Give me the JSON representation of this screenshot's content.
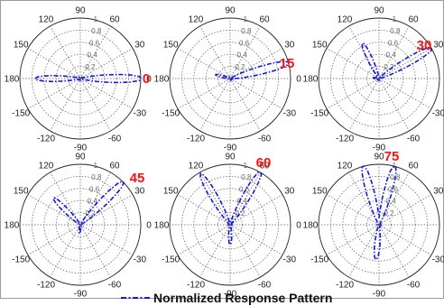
{
  "chart_data": {
    "type": "polar",
    "grid": true,
    "theta_ticks": [
      "0",
      "30",
      "60",
      "90",
      "120",
      "150",
      "180",
      "-150",
      "-120",
      "-90",
      "-60",
      "-30"
    ],
    "r_ticks": [
      "0.2",
      "0.4",
      "0.6",
      "0.8",
      "1"
    ],
    "rlim": [
      0,
      1
    ],
    "legend": {
      "label": "Normalized Response Pattern",
      "placement": "bottom"
    },
    "colors": {
      "series": "#1515e0",
      "annotation": "#ff1010",
      "frame": "#9a9a9a"
    },
    "panels": [
      {
        "label": "0",
        "main_lobe": 0,
        "main_r": 1.0,
        "back_lobe": 180,
        "back_r": 0.72,
        "side_lobe": null,
        "side_r": 0
      },
      {
        "label": "15",
        "main_lobe": 15,
        "main_r": 1.0,
        "back_lobe": 165,
        "back_r": 0.22,
        "side_lobe": null,
        "side_r": 0
      },
      {
        "label": "30",
        "main_lobe": 30,
        "main_r": 1.0,
        "back_lobe": 115,
        "back_r": 0.62,
        "side_lobe": 175,
        "side_r": 0.08
      },
      {
        "label": "45",
        "main_lobe": 45,
        "main_r": 1.0,
        "back_lobe": 135,
        "back_r": 0.6,
        "side_lobe": -95,
        "side_r": 0.12
      },
      {
        "label": "60",
        "main_lobe": 60,
        "main_r": 1.0,
        "back_lobe": 120,
        "back_r": 0.95,
        "side_lobe": -90,
        "side_r": 0.3
      },
      {
        "label": "75",
        "main_lobe": 75,
        "main_r": 1.0,
        "back_lobe": 105,
        "back_r": 1.0,
        "side_lobe": -95,
        "side_r": 0.55
      }
    ]
  }
}
